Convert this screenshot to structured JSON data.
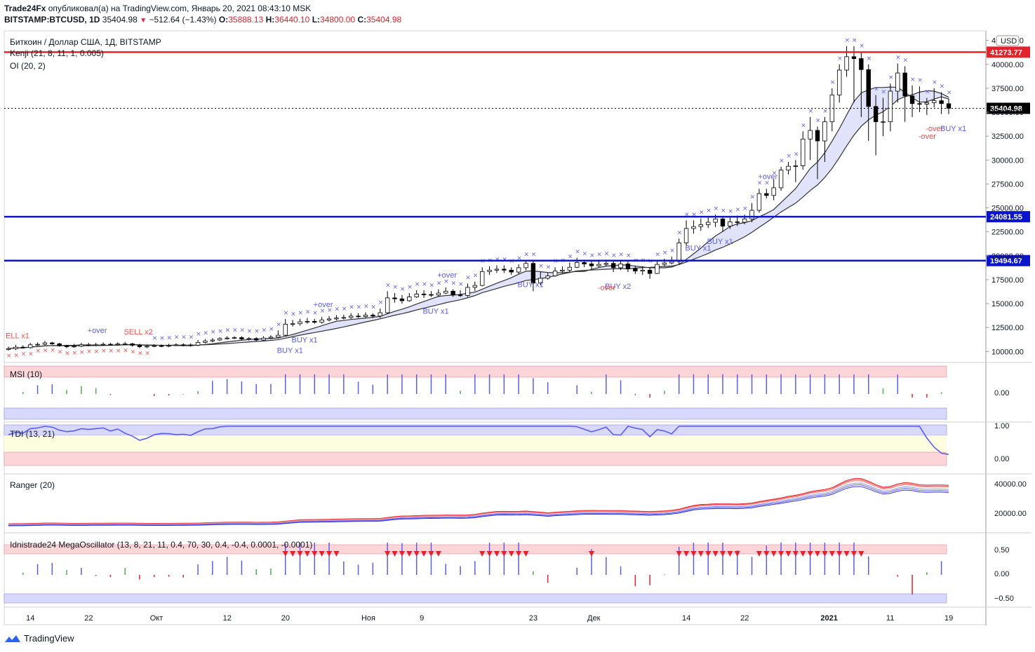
{
  "header": {
    "publisher": "Trade24Fx",
    "published_text": "опубликовал(а) на TradingView.com, Январь 20, 2021 08:43:10 MSK",
    "symbol": "BITSTAMP:BTCUSD, 1D",
    "last": "35404.98",
    "change": "−512.64 (−1.43%)",
    "o_label": "O:",
    "o_value": "35888.13",
    "h_label": "H:",
    "h_value": "36440.10",
    "l_label": "L:",
    "l_value": "34800.00",
    "c_label": "C:",
    "c_value": "35404.98"
  },
  "legend": {
    "title": "Биткоин / Доллар США, 1Д, BITSTAMP",
    "ind1": "Kenji (21, 8, 11, 1, 0.005)",
    "ind2": "OI (20, 2)"
  },
  "currency_badge": "USD",
  "price_axis_ticks": [
    "42500.00",
    "40000.00",
    "37500.00",
    "35000.00",
    "32500.00",
    "30000.00",
    "27500.00",
    "25000.00",
    "22500.00",
    "20000.00",
    "17500.00",
    "15000.00",
    "12500.00",
    "10000.00"
  ],
  "hlines": [
    {
      "value": 41273.77,
      "label": "41273.77",
      "color": "#e1232e"
    },
    {
      "value": 24081.55,
      "label": "24081.55",
      "color": "#0b15c9"
    },
    {
      "value": 19494.67,
      "label": "19494.67",
      "color": "#0b15c9"
    }
  ],
  "last_price_label": "35404.98",
  "signals": [
    {
      "text": "ELL x1",
      "color": "#f0504e"
    },
    {
      "text": "+over",
      "color": "#5b5cf0"
    },
    {
      "text": "SELL x2",
      "color": "#f0504e"
    },
    {
      "text": "BUY x1",
      "color": "#5b5cf0"
    },
    {
      "text": "BUY x1",
      "color": "#5b5cf0"
    },
    {
      "text": "+over",
      "color": "#5b5cf0"
    },
    {
      "text": "+over",
      "color": "#5b5cf0"
    },
    {
      "text": "BUY x1",
      "color": "#5b5cf0"
    },
    {
      "text": "BUY x1",
      "color": "#5b5cf0"
    },
    {
      "text": "BUY x2",
      "color": "#5b5cf0"
    },
    {
      "text": "-over",
      "color": "#f0504e"
    },
    {
      "text": "BUY x1",
      "color": "#5b5cf0"
    },
    {
      "text": "BUY x1",
      "color": "#5b5cf0"
    },
    {
      "text": "+over",
      "color": "#5b5cf0"
    },
    {
      "text": "-over",
      "color": "#f0504e"
    },
    {
      "text": "BUY x1",
      "color": "#5b5cf0"
    },
    {
      "text": "-over",
      "color": "#f0504e"
    }
  ],
  "panes": {
    "msi": {
      "title": "MSI (10)",
      "ticks": [
        "0.00"
      ]
    },
    "tdi": {
      "title": "TDI (13, 21)",
      "ticks": [
        "1.00",
        "0.00"
      ]
    },
    "ranger": {
      "title": "Ranger (20)",
      "ticks": [
        "40000.00",
        "20000.00"
      ]
    },
    "mega": {
      "title": "Idnistrade24 MegaOscillator (13, 8, 21, 11, 0.4, 70, 30, 0.4, -0.4, 0.0001, -0.0001)",
      "ticks": [
        "0.50",
        "0.00",
        "−0.50"
      ]
    }
  },
  "time_axis": [
    "14",
    "22",
    "Окт",
    "12",
    "20",
    "Ноя",
    "9",
    "23",
    "Дек",
    "14",
    "22",
    "2021",
    "11",
    "19"
  ],
  "footer": {
    "brand": "TradingView"
  },
  "colors": {
    "up": "#ffffff",
    "down": "#000000",
    "bull": "#5b5cf0",
    "bear": "#e1232e",
    "green": "#4caf50"
  },
  "chart_data": {
    "type": "candlestick",
    "title": "Биткоин / Доллар США, 1Д, BITSTAMP",
    "symbol": "BITSTAMP:BTCUSD",
    "ylim": [
      9000,
      43500
    ],
    "x_ticks": [
      "14",
      "22",
      "Окт",
      "12",
      "20",
      "Ноя",
      "9",
      "23",
      "Дек",
      "14",
      "22",
      "2021",
      "11",
      "19"
    ],
    "closes": [
      10300,
      10450,
      10400,
      10700,
      10750,
      10900,
      10800,
      10600,
      10500,
      10550,
      10700,
      10650,
      10700,
      10750,
      10700,
      10780,
      10800,
      10650,
      10500,
      10550,
      10600,
      10580,
      10620,
      10700,
      10680,
      10650,
      10950,
      11100,
      11200,
      11350,
      11400,
      11450,
      11300,
      11350,
      11200,
      11400,
      11500,
      11700,
      12850,
      12900,
      13100,
      13150,
      13050,
      13300,
      13400,
      13500,
      13550,
      13700,
      13650,
      13800,
      13700,
      14050,
      15600,
      15500,
      15300,
      15700,
      16000,
      15950,
      15900,
      16100,
      16300,
      15900,
      15850,
      16700,
      16900,
      18350,
      18500,
      18600,
      18500,
      18300,
      18750,
      19200,
      17150,
      17650,
      17900,
      18400,
      18500,
      18800,
      19300,
      19150,
      18950,
      19100,
      19200,
      18750,
      19150,
      18650,
      18400,
      18500,
      18150,
      19100,
      19250,
      19400,
      21350,
      22850,
      23050,
      23250,
      23500,
      23850,
      23100,
      23550,
      23500,
      23850,
      24750,
      26500,
      26300,
      27100,
      28950,
      29350,
      29400,
      32200,
      33100,
      32000,
      34000,
      36800,
      39400,
      40800,
      40600,
      39450,
      35600,
      34000,
      34000,
      37200,
      39100,
      36700,
      35900,
      35850,
      36000,
      36200,
      35900,
      35405
    ],
    "opens": [
      10200,
      10300,
      10450,
      10400,
      10700,
      10750,
      10900,
      10800,
      10600,
      10500,
      10550,
      10700,
      10650,
      10700,
      10750,
      10700,
      10780,
      10800,
      10650,
      10500,
      10550,
      10600,
      10580,
      10620,
      10700,
      10680,
      10650,
      10950,
      11100,
      11200,
      11350,
      11400,
      11450,
      11300,
      11350,
      11200,
      11400,
      11500,
      11700,
      12850,
      12900,
      13100,
      13150,
      13050,
      13300,
      13400,
      13500,
      13550,
      13700,
      13650,
      13800,
      13700,
      14050,
      15600,
      15500,
      15300,
      15700,
      16000,
      15950,
      15900,
      16100,
      16300,
      15900,
      15850,
      16700,
      16900,
      18350,
      18500,
      18600,
      18500,
      18300,
      18750,
      19200,
      17150,
      17650,
      17900,
      18400,
      18500,
      18800,
      19300,
      19150,
      18950,
      19100,
      19200,
      18750,
      19150,
      18650,
      18400,
      18500,
      18150,
      19100,
      19250,
      19400,
      21350,
      22850,
      23050,
      23250,
      23500,
      23850,
      23100,
      23550,
      23500,
      23850,
      24750,
      26500,
      26300,
      27100,
      28950,
      29350,
      29400,
      32200,
      33100,
      32000,
      34000,
      36800,
      39400,
      40800,
      40600,
      39450,
      35600,
      34000,
      34000,
      37200,
      39100,
      36700,
      35900,
      35850,
      36000,
      36200,
      35888
    ],
    "highs": [
      10500,
      10700,
      10650,
      10900,
      10950,
      11100,
      11000,
      10900,
      10700,
      10800,
      10900,
      10900,
      10900,
      10950,
      10900,
      10950,
      11000,
      10900,
      10800,
      10700,
      10750,
      10750,
      10800,
      10850,
      10850,
      10850,
      11200,
      11300,
      11400,
      11500,
      11600,
      11600,
      11600,
      11500,
      11500,
      11600,
      11700,
      12200,
      13400,
      13300,
      13400,
      13500,
      13400,
      13600,
      13700,
      13800,
      13850,
      14000,
      14000,
      14100,
      14000,
      14500,
      16300,
      16100,
      15900,
      16100,
      16400,
      16400,
      16300,
      16500,
      16700,
      16500,
      16400,
      17100,
      17300,
      18800,
      18900,
      19000,
      19000,
      18800,
      19100,
      19500,
      19500,
      18300,
      18200,
      18800,
      18900,
      19300,
      19800,
      19600,
      19400,
      19500,
      19600,
      19400,
      19500,
      19400,
      18900,
      18900,
      18800,
      19500,
      19700,
      19900,
      21800,
      23700,
      23700,
      23900,
      24100,
      24300,
      24100,
      24000,
      24200,
      24300,
      25500,
      27000,
      27000,
      28000,
      29300,
      29800,
      30000,
      33000,
      34500,
      33500,
      34500,
      37500,
      40000,
      41900,
      41900,
      41300,
      40000,
      36800,
      36500,
      38000,
      40100,
      39800,
      37800,
      37700,
      36500,
      37500,
      37100,
      36440
    ],
    "lows": [
      10100,
      10150,
      10300,
      10300,
      10600,
      10650,
      10700,
      10500,
      10350,
      10400,
      10450,
      10550,
      10550,
      10600,
      10600,
      10600,
      10650,
      10500,
      10350,
      10350,
      10450,
      10450,
      10450,
      10550,
      10550,
      10500,
      10550,
      10850,
      10950,
      11100,
      11250,
      11300,
      11150,
      11150,
      11050,
      11100,
      11300,
      11400,
      11600,
      12600,
      12700,
      12900,
      12900,
      12900,
      13150,
      13250,
      13350,
      13400,
      13500,
      13500,
      13500,
      13500,
      13900,
      15100,
      15000,
      15200,
      15600,
      15600,
      15700,
      15700,
      16000,
      15700,
      15700,
      15700,
      16300,
      16800,
      18000,
      18200,
      18200,
      18000,
      18100,
      18500,
      16300,
      16900,
      17500,
      17800,
      18200,
      18300,
      18700,
      18800,
      18600,
      18800,
      18900,
      18300,
      18500,
      18300,
      18100,
      18000,
      17600,
      18100,
      18900,
      19100,
      19100,
      21000,
      22300,
      22600,
      22900,
      23000,
      22500,
      22800,
      23100,
      23300,
      23500,
      24500,
      26000,
      25800,
      26800,
      28500,
      27700,
      29000,
      30000,
      28000,
      29800,
      33000,
      36000,
      38700,
      36000,
      34500,
      32000,
      30500,
      32500,
      33000,
      36000,
      34000,
      34500,
      35000,
      34700,
      35500,
      34800,
      34800
    ]
  }
}
